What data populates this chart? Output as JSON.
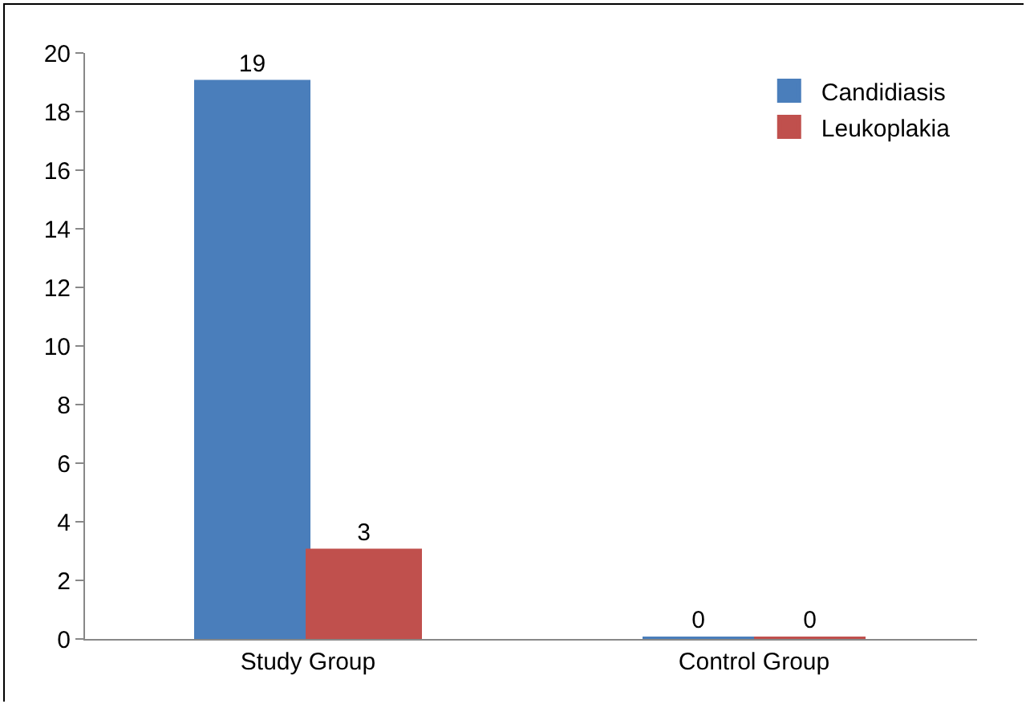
{
  "chart_data": {
    "type": "bar",
    "categories": [
      "Study Group",
      "Control Group"
    ],
    "series": [
      {
        "name": "Candidiasis",
        "color": "#4a7ebb",
        "values": [
          19,
          0
        ]
      },
      {
        "name": "Leukoplakia",
        "color": "#c0504d",
        "values": [
          3,
          0
        ]
      }
    ],
    "ylim": [
      0,
      20
    ],
    "yticks": [
      0,
      2,
      4,
      6,
      8,
      10,
      12,
      14,
      16,
      18,
      20
    ],
    "grid": false,
    "legend": "top right",
    "data_labels": true
  }
}
